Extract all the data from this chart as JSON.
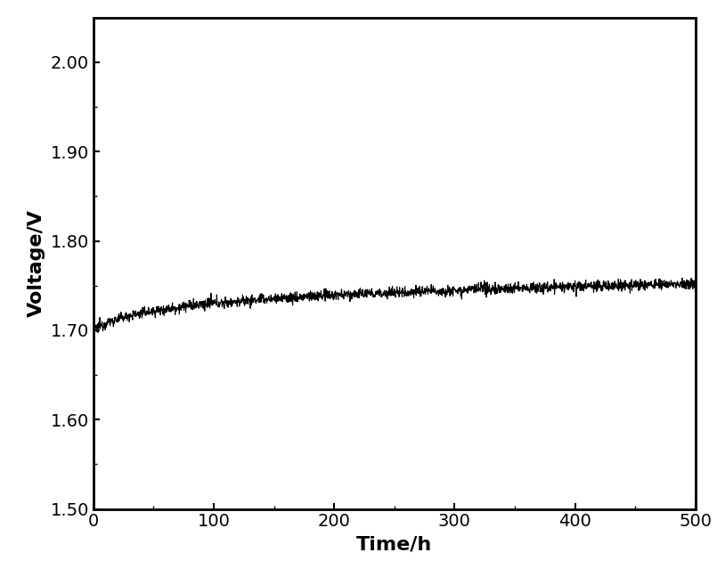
{
  "title": "",
  "xlabel": "Time/h",
  "ylabel": "Voltage/V",
  "xlim": [
    0,
    500
  ],
  "ylim": [
    1.5,
    2.05
  ],
  "yticks": [
    1.5,
    1.6,
    1.7,
    1.8,
    1.9,
    2.0
  ],
  "xticks": [
    0,
    100,
    200,
    300,
    400,
    500
  ],
  "line_color": "#000000",
  "line_width": 0.8,
  "background_color": "#ffffff",
  "xlabel_fontsize": 16,
  "ylabel_fontsize": 16,
  "tick_fontsize": 14,
  "noise_amplitude": 0.003,
  "t_start": 0,
  "t_end": 500,
  "n_points": 2000,
  "v_start": 1.7,
  "v_end": 1.752,
  "log_scale": 15.0,
  "figsize": [
    8.05,
    6.57
  ],
  "dpi": 100
}
